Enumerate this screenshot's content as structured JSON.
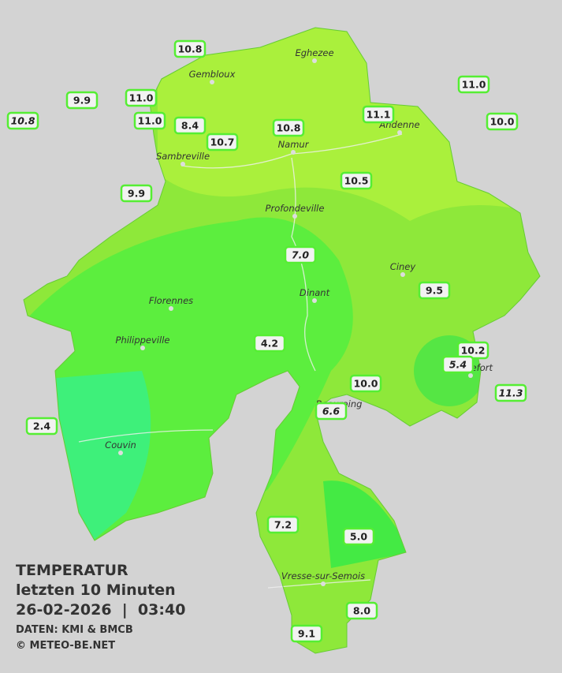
{
  "legend": {
    "title": "TEMPERATUR",
    "period": "letzten 10 Minuten",
    "datetime": "26-02-2026  |  03:40",
    "source": "DATEN: KMI & BMCB",
    "credit": "© METEO-BE.NET"
  },
  "towns": [
    "Eghezee",
    "Gembloux",
    "Andenne",
    "Namur",
    "Sambreville",
    "Profondeville",
    "Ciney",
    "Dinant",
    "Florennes",
    "Philippeville",
    "Rochefort",
    "Beauraing",
    "Couvin",
    "Vresse-sur-Semois"
  ],
  "stations": [
    "10.8",
    "9.9",
    "10.8",
    "11.0",
    "11.0",
    "8.4",
    "10.7",
    "10.8",
    "11.1",
    "11.0",
    "10.0",
    "10.5",
    "9.9",
    "7.0",
    "9.5",
    "4.2",
    "10.2",
    "5.4",
    "10.0",
    "11.3",
    "6.6",
    "2.4",
    "7.2",
    "5.0",
    "8.0",
    "9.1"
  ]
}
